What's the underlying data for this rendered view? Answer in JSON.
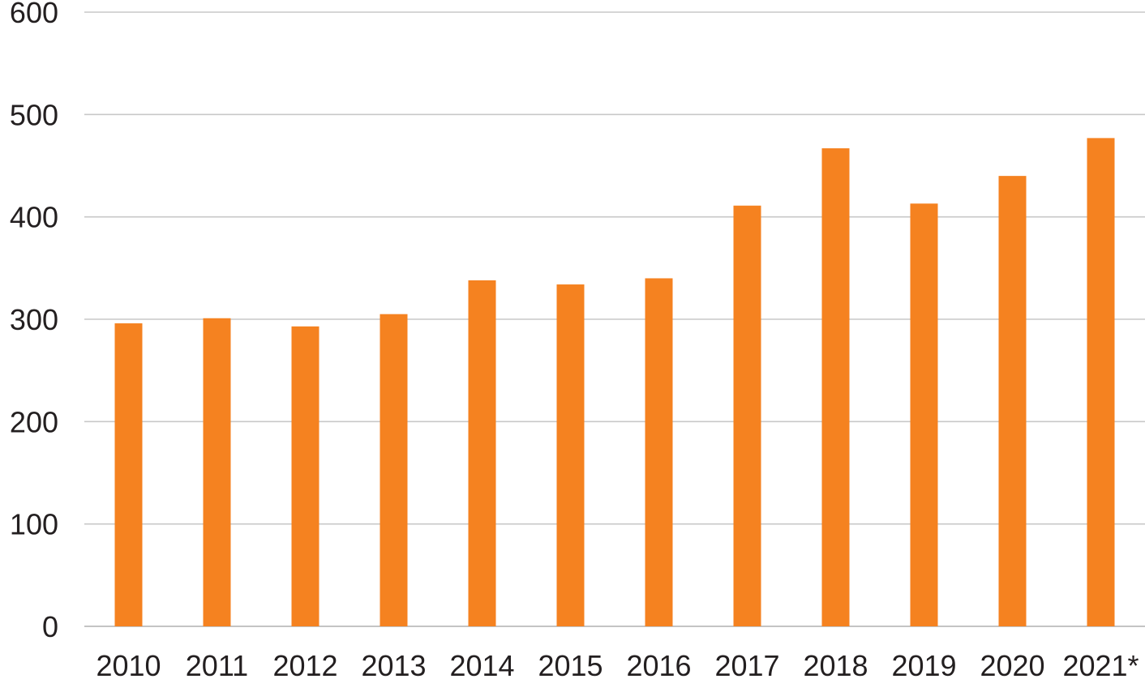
{
  "chart_data": {
    "type": "bar",
    "categories": [
      "2010",
      "2011",
      "2012",
      "2013",
      "2014",
      "2015",
      "2016",
      "2017",
      "2018",
      "2019",
      "2020",
      "2021*"
    ],
    "values": [
      296,
      301,
      293,
      305,
      338,
      334,
      340,
      411,
      467,
      413,
      440,
      477
    ],
    "yticks": [
      "0",
      "100",
      "200",
      "300",
      "400",
      "500",
      "600"
    ],
    "ylim": [
      0,
      600
    ],
    "title": "",
    "xlabel": "",
    "ylabel": "",
    "grid": true,
    "legend": "none",
    "colors": {
      "bar": "#f58220"
    }
  }
}
